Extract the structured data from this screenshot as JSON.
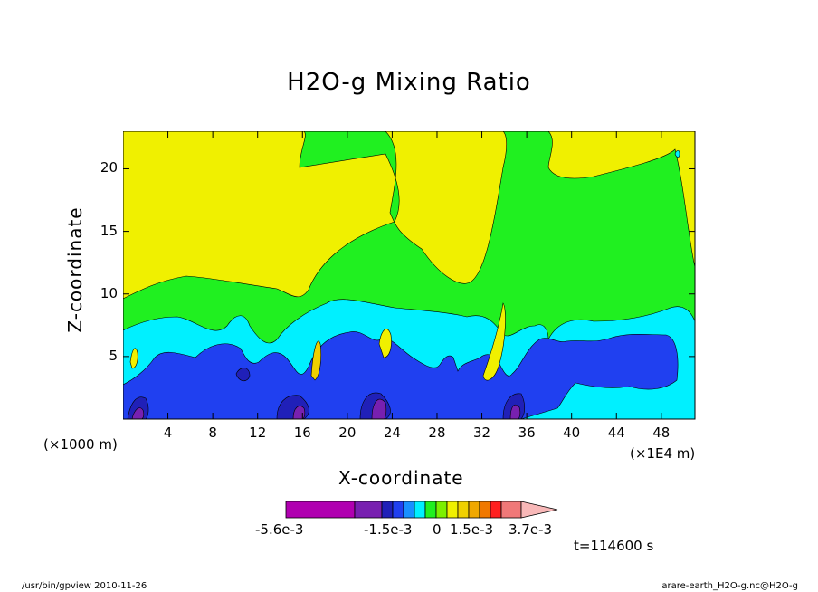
{
  "title": "H2O-g Mixing Ratio",
  "chart_data": {
    "type": "heatmap",
    "title": "H2O-g Mixing Ratio",
    "xlabel": "X-coordinate",
    "ylabel": "Z-coordinate",
    "x_unit": "(×1E4 m)",
    "y_unit": "(×1000 m)",
    "xlim": [
      0,
      51
    ],
    "ylim": [
      0,
      23
    ],
    "x_ticks": [
      "4",
      "8",
      "12",
      "16",
      "20",
      "24",
      "28",
      "32",
      "36",
      "40",
      "44",
      "48"
    ],
    "y_ticks": [
      "5",
      "10",
      "15",
      "20"
    ],
    "colorbar_labels": [
      "-5.6e-3",
      "-1.5e-3",
      "0",
      "1.5e-3",
      "3.7e-3"
    ],
    "levels": [
      {
        "color": "#b000b0"
      },
      {
        "color": "#7820b0"
      },
      {
        "color": "#2020b8"
      },
      {
        "color": "#2040f0"
      },
      {
        "color": "#1890ff"
      },
      {
        "color": "#00f0ff"
      },
      {
        "color": "#20f020"
      },
      {
        "color": "#7cf000"
      },
      {
        "color": "#f0f000"
      },
      {
        "color": "#f0d000"
      },
      {
        "color": "#f0a800"
      },
      {
        "color": "#f07800"
      },
      {
        "color": "#ff2020"
      },
      {
        "color": "#f07878"
      },
      {
        "color": "#f8b8b8"
      }
    ],
    "time_label": "t=114600 s"
  },
  "footer": {
    "left": "/usr/bin/gpview   2010-11-26",
    "right": "arare-earth_H2O-g.nc@H2O-g"
  },
  "colors": {
    "yellow": "#f0f000",
    "green": "#20f020",
    "cyan": "#00f0ff",
    "blue": "#2040f0",
    "navy": "#2020b8",
    "purple": "#7820b0",
    "magenta": "#b000b0",
    "orange": "#f0d000"
  }
}
